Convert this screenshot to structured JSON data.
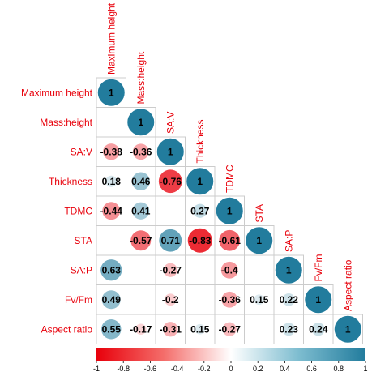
{
  "chart_data": {
    "type": "heatmap",
    "style": "correlogram-lower-circles",
    "variables": [
      "Maximum height",
      "Mass:height",
      "SA:V",
      "Thickness",
      "TDMC",
      "STA",
      "SA:P",
      "Fv/Fm",
      "Aspect ratio"
    ],
    "cells": [
      {
        "row": 0,
        "col": 0,
        "value": 1,
        "label": "1"
      },
      {
        "row": 1,
        "col": 1,
        "value": 1,
        "label": "1"
      },
      {
        "row": 2,
        "col": 0,
        "value": -0.38,
        "label": "-0.38"
      },
      {
        "row": 2,
        "col": 1,
        "value": -0.36,
        "label": "-0.36"
      },
      {
        "row": 2,
        "col": 2,
        "value": 1,
        "label": "1"
      },
      {
        "row": 3,
        "col": 0,
        "value": 0.18,
        "label": "0.18"
      },
      {
        "row": 3,
        "col": 1,
        "value": 0.46,
        "label": "0.46"
      },
      {
        "row": 3,
        "col": 2,
        "value": -0.76,
        "label": "-0.76"
      },
      {
        "row": 3,
        "col": 3,
        "value": 1,
        "label": "1"
      },
      {
        "row": 4,
        "col": 0,
        "value": -0.44,
        "label": "-0.44"
      },
      {
        "row": 4,
        "col": 1,
        "value": 0.41,
        "label": "0.41"
      },
      {
        "row": 4,
        "col": 3,
        "value": 0.27,
        "label": "0.27"
      },
      {
        "row": 4,
        "col": 4,
        "value": 1,
        "label": "1"
      },
      {
        "row": 5,
        "col": 1,
        "value": -0.57,
        "label": "-0.57"
      },
      {
        "row": 5,
        "col": 2,
        "value": 0.71,
        "label": "0.71"
      },
      {
        "row": 5,
        "col": 3,
        "value": -0.83,
        "label": "-0.83"
      },
      {
        "row": 5,
        "col": 4,
        "value": -0.61,
        "label": "-0.61"
      },
      {
        "row": 5,
        "col": 5,
        "value": 1,
        "label": "1"
      },
      {
        "row": 6,
        "col": 0,
        "value": 0.63,
        "label": "0.63"
      },
      {
        "row": 6,
        "col": 2,
        "value": -0.27,
        "label": "-0.27"
      },
      {
        "row": 6,
        "col": 4,
        "value": -0.4,
        "label": "-0.4"
      },
      {
        "row": 6,
        "col": 6,
        "value": 1,
        "label": "1"
      },
      {
        "row": 7,
        "col": 0,
        "value": 0.49,
        "label": "0.49"
      },
      {
        "row": 7,
        "col": 2,
        "value": -0.2,
        "label": "-0.2"
      },
      {
        "row": 7,
        "col": 4,
        "value": -0.36,
        "label": "-0.36"
      },
      {
        "row": 7,
        "col": 5,
        "value": 0.15,
        "label": "0.15"
      },
      {
        "row": 7,
        "col": 6,
        "value": 0.22,
        "label": "0.22"
      },
      {
        "row": 7,
        "col": 7,
        "value": 1,
        "label": "1"
      },
      {
        "row": 8,
        "col": 0,
        "value": 0.55,
        "label": "0.55"
      },
      {
        "row": 8,
        "col": 1,
        "value": -0.17,
        "label": "-0.17"
      },
      {
        "row": 8,
        "col": 2,
        "value": -0.31,
        "label": "-0.31"
      },
      {
        "row": 8,
        "col": 3,
        "value": 0.15,
        "label": "0.15"
      },
      {
        "row": 8,
        "col": 4,
        "value": -0.27,
        "label": "-0.27"
      },
      {
        "row": 8,
        "col": 6,
        "value": 0.23,
        "label": "0.23"
      },
      {
        "row": 8,
        "col": 7,
        "value": 0.24,
        "label": "0.24"
      },
      {
        "row": 8,
        "col": 8,
        "value": 1,
        "label": "1"
      }
    ],
    "colorbar": {
      "range": [
        -1,
        1
      ],
      "ticks": [
        "-1",
        "-0.8",
        "-0.6",
        "-0.4",
        "-0.2",
        "0",
        "0.2",
        "0.4",
        "0.6",
        "0.8",
        "1"
      ]
    },
    "colors": {
      "negative": "#e8000b",
      "mid": "#ffffff",
      "positive": "#227c9d",
      "labels": "#e8000b",
      "grid": "#cccccc"
    },
    "legend_position": "bottom",
    "grid": true
  }
}
